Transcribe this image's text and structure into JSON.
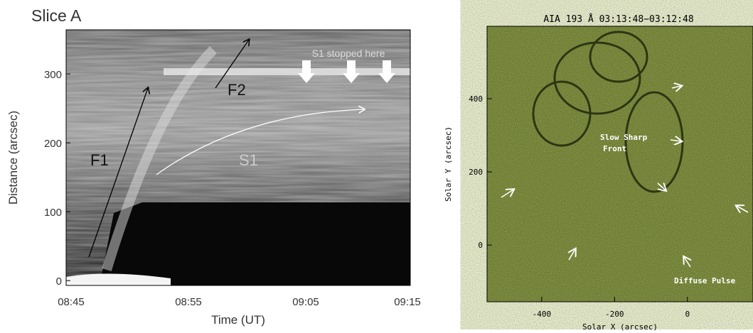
{
  "panels": [
    {
      "title": "Slice A",
      "xlabel": "Time (UT)",
      "ylabel": "Distance (arcsec)",
      "xticks": [
        "08:45",
        "08:55",
        "09:05",
        "09:15"
      ],
      "ylim": [
        -7,
        364
      ],
      "yticks": [
        0,
        100,
        200,
        300
      ],
      "annotations": {
        "stopped": "S1 stopped here",
        "f1": "F1",
        "f2": "F2",
        "s1": "S1"
      }
    },
    {
      "title": "AIA 193 Å 03:13:48−03:12:48",
      "xlabel": "Solar X (arcsec)",
      "ylabel": "Solar Y (arcsec)",
      "xlim": [
        -550,
        180
      ],
      "xticks": [
        -400,
        -200,
        0
      ],
      "ylim": [
        -155,
        598
      ],
      "yticks": [
        0,
        200,
        400
      ],
      "annotations": {
        "front1": "Slow Sharp",
        "front2": "Front",
        "pulse": "Diffuse Pulse"
      }
    }
  ]
}
